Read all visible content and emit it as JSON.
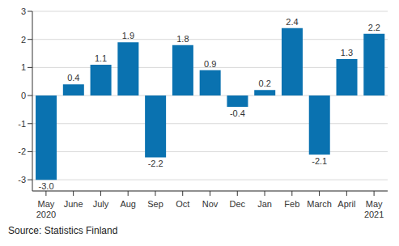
{
  "chart_data": {
    "type": "bar",
    "source": "Source: Statistics Finland",
    "categories": [
      "May 2020",
      "June",
      "July",
      "Aug",
      "Sep",
      "Oct",
      "Nov",
      "Dec",
      "Jan",
      "Feb",
      "March",
      "April",
      "May 2021"
    ],
    "values": [
      -3.0,
      0.4,
      1.1,
      1.9,
      -2.2,
      1.8,
      0.9,
      -0.4,
      0.2,
      2.4,
      -2.1,
      1.3,
      2.2
    ],
    "value_labels": [
      "-3.0",
      "0.4",
      "1.1",
      "1.9",
      "-2.2",
      "1.8",
      "0.9",
      "-0.4",
      "0.2",
      "2.4",
      "-2.1",
      "1.3",
      "2.2"
    ],
    "color": "#0a72b0",
    "ylim": [
      -3.4,
      3
    ],
    "yticks": [
      -3,
      -2,
      -1,
      0,
      1,
      2,
      3
    ],
    "grid": true,
    "data_labels": true
  }
}
